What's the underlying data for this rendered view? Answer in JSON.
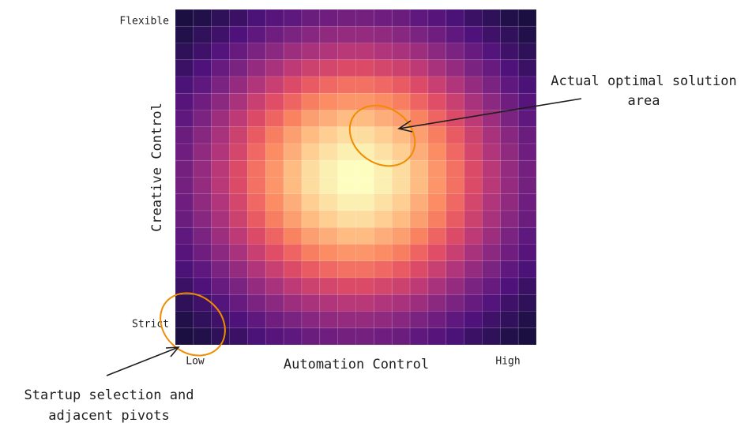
{
  "chart_data": {
    "type": "heatmap",
    "x_label": "Automation Control",
    "y_label": "Creative Control",
    "x_low_label": "Low",
    "x_high_label": "High",
    "y_high_label": "Flexible",
    "y_low_label": "Strict",
    "colormap": "magma",
    "zlim": [
      0,
      100
    ],
    "z": [
      [
        12,
        14,
        17,
        20,
        24,
        27,
        29,
        32,
        33,
        34,
        34,
        33,
        32,
        29,
        27,
        24,
        20,
        17,
        14,
        12
      ],
      [
        14,
        18,
        21,
        25,
        29,
        33,
        36,
        39,
        41,
        42,
        42,
        41,
        39,
        36,
        33,
        29,
        25,
        21,
        18,
        14
      ],
      [
        17,
        21,
        26,
        31,
        36,
        40,
        44,
        47,
        49,
        51,
        51,
        49,
        47,
        44,
        40,
        36,
        31,
        26,
        21,
        17
      ],
      [
        20,
        25,
        31,
        36,
        42,
        47,
        52,
        56,
        58,
        60,
        60,
        58,
        56,
        52,
        47,
        42,
        36,
        31,
        25,
        20
      ],
      [
        24,
        29,
        36,
        42,
        49,
        55,
        60,
        65,
        68,
        70,
        70,
        68,
        65,
        60,
        55,
        49,
        42,
        36,
        29,
        24
      ],
      [
        27,
        33,
        40,
        47,
        55,
        61,
        67,
        73,
        76,
        78,
        78,
        76,
        73,
        67,
        61,
        55,
        47,
        40,
        33,
        27
      ],
      [
        29,
        36,
        44,
        52,
        60,
        67,
        74,
        80,
        83,
        86,
        86,
        83,
        80,
        74,
        67,
        60,
        52,
        44,
        36,
        29
      ],
      [
        32,
        39,
        47,
        56,
        65,
        73,
        80,
        86,
        90,
        93,
        93,
        90,
        86,
        80,
        73,
        65,
        56,
        47,
        39,
        32
      ],
      [
        33,
        41,
        49,
        58,
        68,
        76,
        83,
        90,
        94,
        97,
        97,
        94,
        90,
        83,
        76,
        68,
        58,
        49,
        41,
        33
      ],
      [
        34,
        42,
        51,
        60,
        70,
        78,
        86,
        93,
        97,
        100,
        100,
        97,
        93,
        86,
        78,
        70,
        60,
        51,
        42,
        34
      ],
      [
        34,
        42,
        51,
        60,
        70,
        78,
        86,
        93,
        97,
        100,
        100,
        97,
        93,
        86,
        78,
        70,
        60,
        51,
        42,
        34
      ],
      [
        33,
        41,
        49,
        58,
        68,
        76,
        83,
        90,
        94,
        97,
        97,
        94,
        90,
        83,
        76,
        68,
        58,
        49,
        41,
        33
      ],
      [
        32,
        39,
        47,
        56,
        65,
        73,
        80,
        86,
        90,
        93,
        93,
        90,
        86,
        80,
        73,
        65,
        56,
        47,
        39,
        32
      ],
      [
        29,
        36,
        44,
        52,
        60,
        67,
        74,
        80,
        83,
        86,
        86,
        83,
        80,
        74,
        67,
        60,
        52,
        44,
        36,
        29
      ],
      [
        27,
        33,
        40,
        47,
        55,
        61,
        67,
        73,
        76,
        78,
        78,
        76,
        73,
        67,
        61,
        55,
        47,
        40,
        33,
        27
      ],
      [
        24,
        29,
        36,
        42,
        49,
        55,
        60,
        65,
        68,
        70,
        70,
        68,
        65,
        60,
        55,
        49,
        42,
        36,
        29,
        24
      ],
      [
        20,
        25,
        31,
        36,
        42,
        47,
        52,
        56,
        58,
        60,
        60,
        58,
        56,
        52,
        47,
        42,
        36,
        31,
        25,
        20
      ],
      [
        17,
        21,
        26,
        31,
        36,
        40,
        44,
        47,
        49,
        51,
        51,
        49,
        47,
        44,
        40,
        36,
        31,
        26,
        21,
        17
      ],
      [
        14,
        18,
        21,
        25,
        29,
        33,
        36,
        39,
        41,
        42,
        42,
        41,
        39,
        36,
        33,
        29,
        25,
        21,
        18,
        14
      ],
      [
        12,
        14,
        17,
        20,
        24,
        27,
        29,
        32,
        33,
        34,
        34,
        33,
        32,
        29,
        27,
        24,
        20,
        17,
        14,
        12
      ]
    ],
    "annotations": [
      {
        "lines": [
          "Actual optimal solution",
          "area"
        ]
      },
      {
        "lines": [
          "Startup selection and",
          "adjacent pivots"
        ]
      }
    ]
  }
}
